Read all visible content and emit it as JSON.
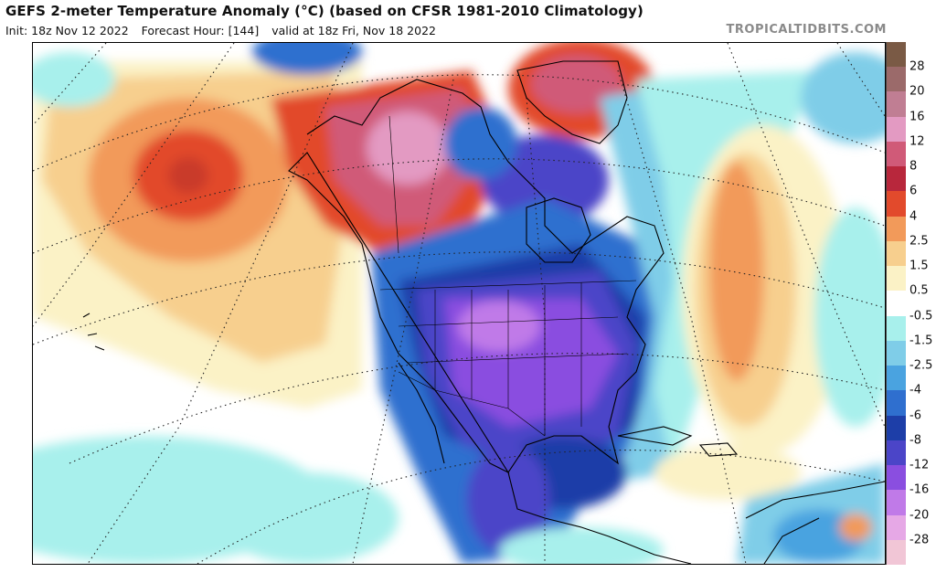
{
  "header": {
    "title": "GEFS 2-meter Temperature Anomaly (°C) (based on CFSR 1981-2010 Climatology)",
    "init": "Init: 18z Nov 12 2022",
    "forecast_hour": "Forecast Hour: [144]",
    "valid": "valid at 18z Fri, Nov 18 2022",
    "watermark": "TROPICALTIDBITS.COM"
  },
  "colorbar": {
    "labels": [
      "28",
      "20",
      "16",
      "12",
      "8",
      "6",
      "4",
      "2.5",
      "1.5",
      "0.5",
      "-0.5",
      "-1.5",
      "-2.5",
      "-4",
      "-6",
      "-8",
      "-12",
      "-16",
      "-20",
      "-28"
    ],
    "colors": [
      "#7a5a45",
      "#9b6a6a",
      "#c07e93",
      "#e39ac2",
      "#d05a78",
      "#b8273c",
      "#e24a2c",
      "#f29a5a",
      "#f7cf8e",
      "#fbf2c6",
      "#ffffff",
      "#a8f0ec",
      "#7fcde8",
      "#4aa3e0",
      "#2f6fcf",
      "#1d3ea8",
      "#4b45c8",
      "#8a4ee0",
      "#c07ae8",
      "#e6a8e6",
      "#f1c6d6"
    ]
  },
  "map": {
    "colors": {
      "warm_light": "#fbf2c6",
      "warm_mid": "#f7cf8e",
      "warm_orange": "#f29a5a",
      "warm_red": "#e24a2c",
      "warm_dark": "#b8273c",
      "warm_pink": "#d05a78",
      "cool_cyan": "#a8f0ec",
      "cool_light": "#7fcde8",
      "cool_mid": "#4aa3e0",
      "cool_blue": "#2f6fcf",
      "cool_dark": "#1d3ea8",
      "cold_purple": "#4b45c8",
      "cold_violet": "#8a4ee0",
      "cold_magenta": "#c07ae8"
    }
  }
}
